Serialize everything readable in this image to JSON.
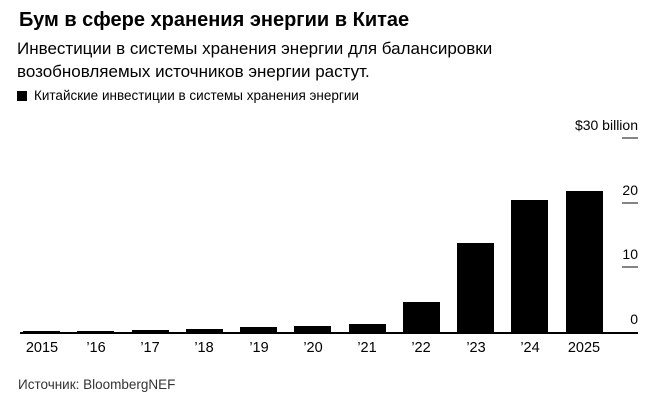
{
  "header": {
    "title": "Бум в сфере хранения энергии в Китае",
    "subtitle": "Инвестиции в системы хранения энергии для балансировки возобновляемых источников энергии растут."
  },
  "legend": {
    "label": "Китайские инвестиции в системы хранения энергии",
    "swatch_color": "#000000"
  },
  "chart_data": {
    "type": "bar",
    "title": "Бум в сфере хранения энергии в Китае",
    "series_name": "Китайские инвестиции в системы хранения энергии",
    "categories": [
      "2015",
      "’16",
      "’17",
      "’18",
      "’19",
      "’20",
      "’21",
      "’22",
      "’23",
      "’24",
      "2025"
    ],
    "values": [
      0.1,
      0.2,
      0.3,
      0.5,
      0.7,
      0.9,
      1.3,
      4.6,
      13.8,
      20.4,
      21.8
    ],
    "unit_label": "$30 billion",
    "yticks": [
      0,
      10,
      20,
      30
    ],
    "ytick_labels": [
      "0",
      "10",
      "20",
      "$30 billion"
    ],
    "ylim": [
      0,
      30
    ],
    "bar_color": "#000000",
    "grid": false,
    "axis_side": "right",
    "legend_position": "top-left"
  },
  "footer": {
    "source": "Источник: BloombergNEF"
  }
}
